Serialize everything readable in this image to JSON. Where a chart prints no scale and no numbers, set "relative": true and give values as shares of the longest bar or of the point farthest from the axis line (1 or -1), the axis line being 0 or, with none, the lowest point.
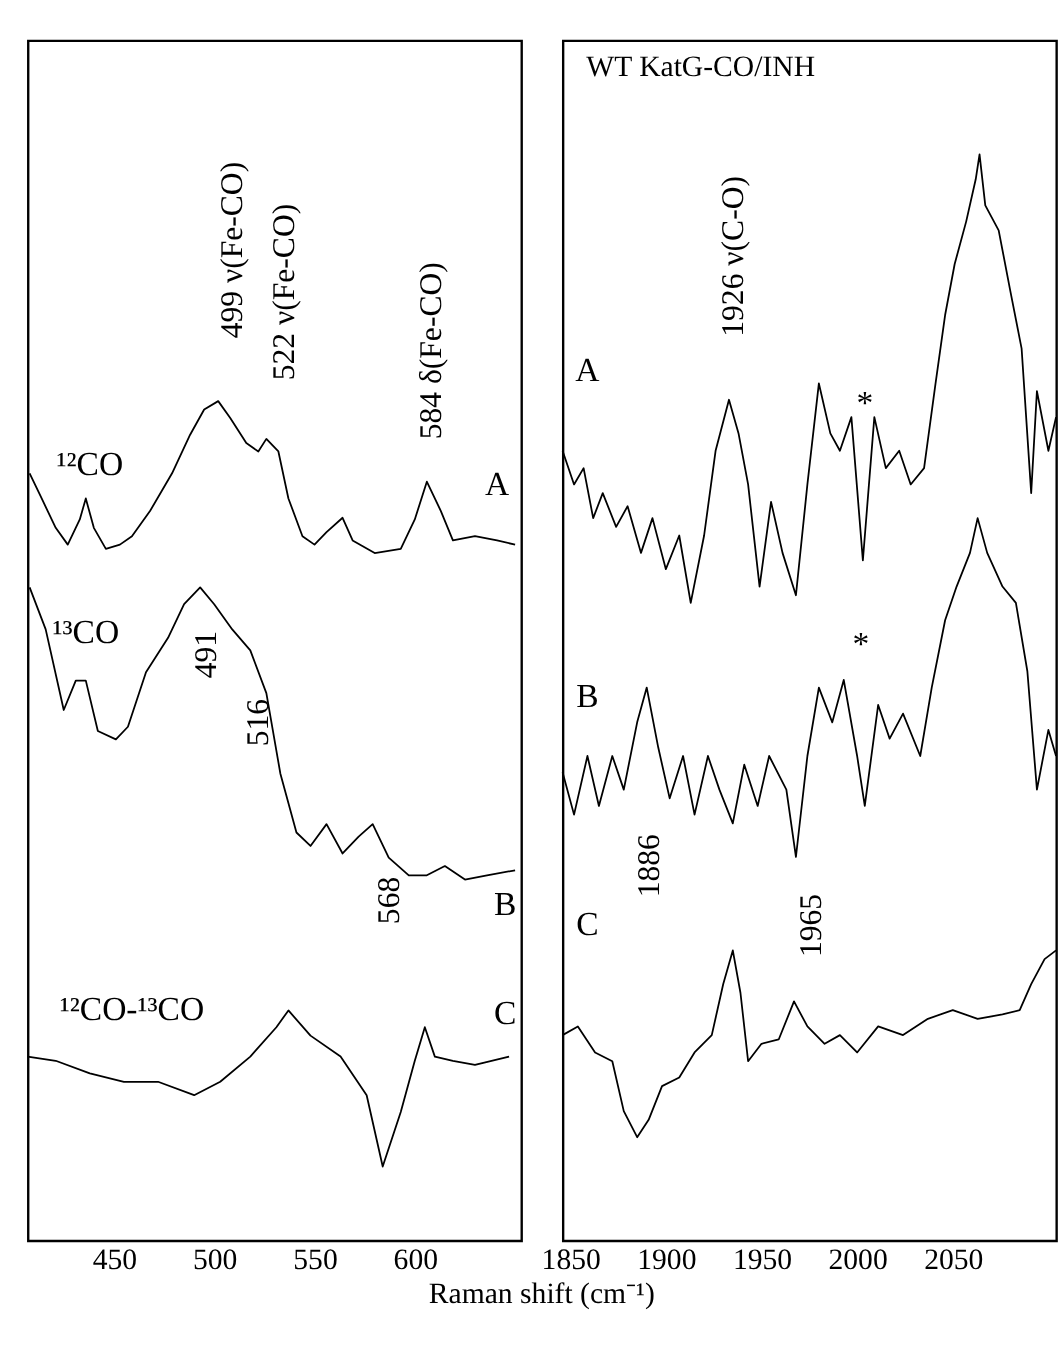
{
  "chart_data": [
    {
      "type": "line",
      "relative": true,
      "xlabel": "Raman shift (cm⁻¹)",
      "xlim": [
        407,
        653
      ],
      "xticks": [
        450,
        500,
        550,
        600
      ],
      "tick_labels": "x",
      "grid": false,
      "line_style": "solid",
      "marker": "none",
      "series": [
        {
          "color": "#000000",
          "x": [
            408,
            414,
            421,
            427,
            433,
            436,
            440,
            446,
            453,
            459,
            468,
            479,
            488,
            495,
            502,
            508,
            516,
            522,
            526,
            532,
            537,
            544,
            550,
            556,
            564,
            569,
            580,
            593,
            600,
            606,
            613,
            619,
            630,
            641,
            650
          ],
          "values": [
            0.914,
            0.884,
            0.849,
            0.829,
            0.859,
            0.884,
            0.849,
            0.824,
            0.829,
            0.839,
            0.869,
            0.914,
            0.96,
            0.99,
            1.0,
            0.98,
            0.95,
            0.94,
            0.955,
            0.94,
            0.884,
            0.839,
            0.829,
            0.844,
            0.861,
            0.834,
            0.819,
            0.824,
            0.859,
            0.904,
            0.869,
            0.834,
            0.839,
            0.834,
            0.829
          ]
        },
        {
          "color": "#000000",
          "x": [
            408,
            416,
            425,
            431,
            436,
            442,
            451,
            457,
            466,
            477,
            485,
            493,
            500,
            509,
            518,
            526,
            533,
            541,
            548,
            556,
            564,
            572,
            579,
            587,
            597,
            606,
            615,
            625,
            636,
            650
          ],
          "values": [
            0.778,
            0.728,
            0.632,
            0.667,
            0.667,
            0.607,
            0.597,
            0.612,
            0.677,
            0.718,
            0.758,
            0.778,
            0.758,
            0.728,
            0.703,
            0.652,
            0.556,
            0.486,
            0.47,
            0.496,
            0.461,
            0.481,
            0.496,
            0.456,
            0.435,
            0.435,
            0.446,
            0.43,
            0.435,
            0.441
          ]
        },
        {
          "color": "#000000",
          "x": [
            407,
            421,
            438,
            455,
            472,
            490,
            503,
            518,
            531,
            537,
            548,
            563,
            576,
            584,
            593,
            600,
            605,
            610,
            619,
            630,
            647
          ],
          "values": [
            0.219,
            0.214,
            0.199,
            0.189,
            0.189,
            0.173,
            0.189,
            0.219,
            0.254,
            0.274,
            0.244,
            0.219,
            0.173,
            0.088,
            0.153,
            0.214,
            0.254,
            0.219,
            0.214,
            0.209,
            0.219
          ]
        }
      ],
      "annotations": [
        "¹²CO",
        "¹³CO",
        "¹²CO-¹³CO",
        "A",
        "B",
        "C",
        "499 ν(Fe-CO)",
        "522 ν(Fe-CO)",
        "584 δ(Fe-CO)",
        "491",
        "516",
        "568"
      ]
    },
    {
      "type": "line",
      "relative": true,
      "title": "WT KatG-CO/INH",
      "xlim": [
        1846,
        2104
      ],
      "xticks": [
        1850,
        1900,
        1950,
        2000,
        2050
      ],
      "tick_labels": "x",
      "grid": false,
      "line_style": "solid",
      "marker": "none",
      "series": [
        {
          "color": "#000000",
          "x": [
            1846,
            1852,
            1857,
            1862,
            1867,
            1874,
            1880,
            1887,
            1893,
            1900,
            1907,
            1913,
            1920,
            1926,
            1933,
            1938,
            1943,
            1949,
            1955,
            1961,
            1968,
            1974,
            1980,
            1986,
            1991,
            1997,
            2003,
            2009,
            2015,
            2022,
            2028,
            2035,
            2041,
            2046,
            2051,
            2057,
            2062,
            2064,
            2067,
            2074,
            2080,
            2086,
            2091,
            2094,
            2100,
            2104
          ],
          "values": [
            0.727,
            0.696,
            0.711,
            0.665,
            0.688,
            0.657,
            0.676,
            0.633,
            0.665,
            0.618,
            0.649,
            0.587,
            0.649,
            0.727,
            0.774,
            0.743,
            0.696,
            0.602,
            0.68,
            0.633,
            0.594,
            0.696,
            0.789,
            0.743,
            0.727,
            0.758,
            0.626,
            0.758,
            0.711,
            0.727,
            0.696,
            0.711,
            0.789,
            0.852,
            0.899,
            0.938,
            0.977,
            1.0,
            0.953,
            0.93,
            0.875,
            0.821,
            0.688,
            0.782,
            0.727,
            0.758
          ]
        },
        {
          "color": "#000000",
          "x": [
            1846,
            1852,
            1859,
            1865,
            1872,
            1878,
            1885,
            1890,
            1896,
            1902,
            1909,
            1915,
            1922,
            1928,
            1935,
            1941,
            1948,
            1954,
            1963,
            1968,
            1974,
            1980,
            1987,
            1993,
            2000,
            2004,
            2011,
            2017,
            2024,
            2033,
            2039,
            2046,
            2052,
            2059,
            2063,
            2068,
            2076,
            2083,
            2089,
            2094,
            2100,
            2104
          ],
          "values": [
            0.431,
            0.392,
            0.446,
            0.4,
            0.446,
            0.415,
            0.477,
            0.509,
            0.454,
            0.407,
            0.446,
            0.392,
            0.446,
            0.415,
            0.384,
            0.438,
            0.4,
            0.446,
            0.415,
            0.353,
            0.446,
            0.509,
            0.477,
            0.516,
            0.446,
            0.4,
            0.493,
            0.462,
            0.485,
            0.446,
            0.509,
            0.571,
            0.602,
            0.633,
            0.665,
            0.633,
            0.602,
            0.587,
            0.524,
            0.415,
            0.47,
            0.446
          ]
        },
        {
          "color": "#000000",
          "x": [
            1846,
            1854,
            1863,
            1872,
            1878,
            1885,
            1891,
            1898,
            1907,
            1915,
            1924,
            1930,
            1935,
            1939,
            1943,
            1950,
            1959,
            1967,
            1974,
            1983,
            1991,
            2000,
            2011,
            2024,
            2037,
            2050,
            2063,
            2076,
            2085,
            2091,
            2098,
            2104
          ],
          "values": [
            0.189,
            0.197,
            0.173,
            0.165,
            0.119,
            0.095,
            0.111,
            0.142,
            0.15,
            0.173,
            0.189,
            0.236,
            0.267,
            0.228,
            0.165,
            0.181,
            0.185,
            0.22,
            0.197,
            0.181,
            0.189,
            0.173,
            0.197,
            0.189,
            0.204,
            0.212,
            0.204,
            0.208,
            0.212,
            0.236,
            0.259,
            0.267
          ]
        }
      ],
      "annotations": [
        "A",
        "B",
        "C",
        "*",
        "*",
        "1926 ν(C-O)",
        "1886",
        "1965"
      ]
    }
  ]
}
